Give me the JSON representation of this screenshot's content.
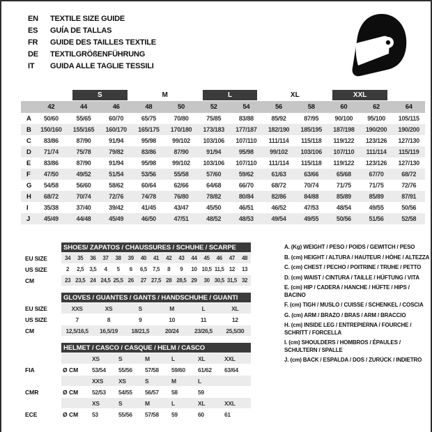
{
  "header": {
    "languages": [
      {
        "code": "EN",
        "text": "TEXTILE SIZE GUIDE"
      },
      {
        "code": "ES",
        "text": "GUÍA DE TALLAS"
      },
      {
        "code": "FR",
        "text": "GUIDE DES TAILLES TEXTILE"
      },
      {
        "code": "DE",
        "text": "TEXTILGRÖßENFÜHRUNG"
      },
      {
        "code": "IT",
        "text": "GUIDA ALLE TAGLIE TESSILI"
      }
    ],
    "icon": "racing-helmet-icon"
  },
  "colors": {
    "dark_bar": "#3b3b3b",
    "column_band": "#c6c6c6",
    "row_alt": "#ebebeb",
    "text": "#0e0e0e"
  },
  "size_table": {
    "size_groups": [
      {
        "label": "",
        "dark": false,
        "span": 1
      },
      {
        "label": "S",
        "dark": true,
        "span": 2
      },
      {
        "label": "M",
        "dark": false,
        "span": 2
      },
      {
        "label": "L",
        "dark": true,
        "span": 2
      },
      {
        "label": "XL",
        "dark": false,
        "span": 2
      },
      {
        "label": "XXL",
        "dark": true,
        "span": 2
      },
      {
        "label": "",
        "dark": false,
        "span": 1
      }
    ],
    "columns": [
      "42",
      "44",
      "46",
      "48",
      "50",
      "52",
      "54",
      "56",
      "58",
      "60",
      "62",
      "64"
    ],
    "rows": [
      {
        "label": "A",
        "values": [
          "50/60",
          "55/65",
          "60/70",
          "65/75",
          "70/80",
          "75/85",
          "83/88",
          "85/92",
          "87/95",
          "90/100",
          "95/100",
          "105/115"
        ]
      },
      {
        "label": "B",
        "values": [
          "150/160",
          "155/165",
          "160/170",
          "165/175",
          "170/180",
          "173/183",
          "177/187",
          "182/190",
          "185/195",
          "187/198",
          "190/200",
          "190/200"
        ]
      },
      {
        "label": "C",
        "values": [
          "83/86",
          "87/90",
          "91/94",
          "95/98",
          "99/102",
          "103/106",
          "107/110",
          "111/114",
          "115/118",
          "119/122",
          "123/126",
          "127/130"
        ]
      },
      {
        "label": "D",
        "values": [
          "71/74",
          "75/78",
          "79/82",
          "83/86",
          "87/90",
          "91/94",
          "95/98",
          "99/102",
          "103/106",
          "107/110",
          "111/114",
          "115/119"
        ]
      },
      {
        "label": "E",
        "values": [
          "83/86",
          "87/90",
          "91/94",
          "95/98",
          "99/102",
          "103/106",
          "107/110",
          "111/114",
          "115/118",
          "119/122",
          "123/126",
          "127/130"
        ]
      },
      {
        "label": "F",
        "values": [
          "47/50",
          "49/52",
          "51/54",
          "53/56",
          "55/58",
          "57/60",
          "59/62",
          "61/63",
          "63/66",
          "65/68",
          "67/70",
          "68/72"
        ]
      },
      {
        "label": "G",
        "values": [
          "54/58",
          "56/60",
          "58/62",
          "60/64",
          "62/66",
          "64/68",
          "66/70",
          "68/72",
          "70/74",
          "71/75",
          "71/75",
          "72/76"
        ]
      },
      {
        "label": "H",
        "values": [
          "68/72",
          "70/74",
          "72/76",
          "74/78",
          "76/80",
          "78/82",
          "80/84",
          "82/86",
          "84/88",
          "85/89",
          "85/89",
          "87/91"
        ]
      },
      {
        "label": "I",
        "values": [
          "35/38",
          "37/40",
          "39/42",
          "41/45",
          "43/47",
          "45/50",
          "46/51",
          "46/52",
          "47/53",
          "48/54",
          "49/55",
          "50/56"
        ]
      },
      {
        "label": "J",
        "values": [
          "45/49",
          "44/48",
          "45/49",
          "46/50",
          "47/51",
          "48/52",
          "48/53",
          "49/54",
          "49/55",
          "50/56",
          "51/56",
          "52/58"
        ]
      }
    ]
  },
  "shoes": {
    "title": "SHOES/ ZAPATOS / CHAUSSURES / SCHUHE / SCARPE",
    "rows": [
      {
        "label": "EU SIZE",
        "band": true,
        "values": [
          "34",
          "35",
          "36",
          "37",
          "38",
          "39",
          "40",
          "41",
          "42",
          "43",
          "44",
          "45",
          "46",
          "47",
          "48"
        ]
      },
      {
        "label": "US SIZE",
        "band": false,
        "values": [
          "2",
          "2,5",
          "3,5",
          "4",
          "5",
          "6",
          "6,5",
          "7,5",
          "8",
          "9",
          "10",
          "10,5",
          "11,5",
          "12",
          "13"
        ]
      },
      {
        "label": "CM",
        "band": true,
        "values": [
          "23",
          "23,5",
          "24",
          "24,5",
          "25,5",
          "26",
          "27",
          "27,5",
          "28",
          "28,5",
          "29",
          "30",
          "30,5",
          "31,5",
          "32"
        ]
      }
    ]
  },
  "gloves": {
    "title": "GLOVES / GUANTES / GANTS / HANDSCHUHE / GUANTI",
    "rows": [
      {
        "label": "EU SIZE",
        "band": true,
        "values": [
          "XXS",
          "XS",
          "S",
          "M",
          "L",
          "XL"
        ]
      },
      {
        "label": "US SIZE",
        "band": false,
        "values": [
          "7",
          "8",
          "9",
          "10",
          "11",
          "12"
        ]
      },
      {
        "label": "CM",
        "band": true,
        "values": [
          "12,5/16,5",
          "16,5/19",
          "18/21,5",
          "20/24",
          "23/26,5",
          "25,5/30"
        ]
      }
    ]
  },
  "helmet": {
    "title": "HELMET / CASCO / CASQUE / HELM / CASCO",
    "rows": [
      {
        "label": "",
        "unit": "",
        "band": true,
        "values": [
          "XS",
          "S",
          "M",
          "L",
          "XL",
          "XXL"
        ]
      },
      {
        "label": "FIA",
        "unit": "Ø CM",
        "band": false,
        "values": [
          "53/54",
          "55/56",
          "57/58",
          "59/60",
          "61/62",
          "63/64"
        ]
      },
      {
        "label": "",
        "unit": "",
        "band": true,
        "values": [
          "XXS",
          "XS",
          "S",
          "M",
          "L",
          ""
        ]
      },
      {
        "label": "CMR",
        "unit": "Ø CM",
        "band": false,
        "values": [
          "52/53",
          "54/55",
          "56/57",
          "58",
          "59",
          ""
        ]
      },
      {
        "label": "",
        "unit": "",
        "band": true,
        "values": [
          "XS",
          "S",
          "M",
          "L",
          "XL",
          "XXL"
        ]
      },
      {
        "label": "ECE",
        "unit": "Ø CM",
        "band": false,
        "values": [
          "53",
          "55/56",
          "57/58",
          "59",
          "60",
          "61"
        ]
      }
    ]
  },
  "legend": {
    "items": [
      "A. (Kg) WEIGHT / PESO / POIDS / GEWITCH / PESO",
      "B. (cm) HEIGHT / ALTURA / HAUTEUR / HÖHE / ALTEZZA",
      "C. (cm) CHEST / PECHO / POITRINE / TRUHE / PETTO",
      "D. (cm) WAIST / CINTURA / TAILLE / HÜFTUNG / VITA",
      "E. (cm) HIP / CADERA / HANCHE / HÜFTE / HIPS / BACINO",
      "F. (cm) TIGH / MUSLO / CUISSE / SCHENKEL / COSCIA",
      "G. (cm) ARM / BRAZO / BRAS / ARM / BRACCIO",
      "H. (cm) INSIDE LEG / ENTREPIERNA / FOURCHE / SCHRITT / FORCELLA",
      "I. (cm) SHOULDERS / HOMBROS / ÉPAULES / SCHULTERN / SPALLE",
      "J. (cm) BACK / ESPALDA / DOS / ZURÜCK / INDIETRO"
    ]
  }
}
